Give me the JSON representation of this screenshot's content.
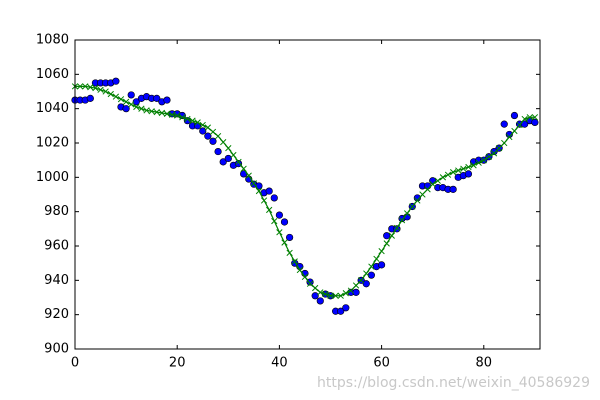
{
  "chart_data": {
    "type": "line",
    "x": [
      0,
      1,
      2,
      3,
      4,
      5,
      6,
      7,
      8,
      9,
      10,
      11,
      12,
      13,
      14,
      15,
      16,
      17,
      18,
      19,
      20,
      21,
      22,
      23,
      24,
      25,
      26,
      27,
      28,
      29,
      30,
      31,
      32,
      33,
      34,
      35,
      36,
      37,
      38,
      39,
      40,
      41,
      42,
      43,
      44,
      45,
      46,
      47,
      48,
      49,
      50,
      51,
      52,
      53,
      54,
      55,
      56,
      57,
      58,
      59,
      60,
      61,
      62,
      63,
      64,
      65,
      66,
      67,
      68,
      69,
      70,
      71,
      72,
      73,
      74,
      75,
      76,
      77,
      78,
      79,
      80,
      81,
      82,
      83,
      84,
      85,
      86,
      87,
      88,
      89,
      90
    ],
    "series": [
      {
        "color": "#0000ff",
        "mode": "markers",
        "marker": "circle",
        "values": [
          1045,
          1045,
          1045,
          1046,
          1055,
          1055,
          1055,
          1055,
          1056,
          1041,
          1040,
          1048,
          1044,
          1046,
          1047,
          1046,
          1046,
          1044,
          1045,
          1037,
          1037,
          1036,
          1033,
          1030,
          1030,
          1027,
          1024,
          1021,
          1015,
          1009,
          1011,
          1007,
          1008,
          1002,
          999,
          996,
          995,
          991,
          992,
          988,
          978,
          974,
          965,
          950,
          948,
          944,
          939,
          931,
          928,
          932,
          931,
          922,
          922,
          924,
          933,
          933,
          940,
          938,
          943,
          948,
          949,
          966,
          970,
          970,
          976,
          977,
          983,
          988,
          995,
          995,
          998,
          994,
          994,
          993,
          993,
          1000,
          1001,
          1002,
          1009,
          1010,
          1010,
          1012,
          1015,
          1017,
          1031,
          1025,
          1036,
          1031,
          1031,
          1033,
          1032
        ]
      },
      {
        "color": "#008000",
        "mode": "lines+markers",
        "marker": "x",
        "values": [
          1053,
          1053,
          1053,
          1052.5,
          1052,
          1051,
          1050,
          1048.5,
          1047,
          1045.5,
          1044,
          1042.5,
          1041,
          1040,
          1039,
          1038.5,
          1038,
          1037.5,
          1037,
          1036.5,
          1036,
          1035,
          1034,
          1033,
          1032,
          1030.5,
          1029,
          1026.5,
          1024,
          1020.5,
          1017,
          1013,
          1009,
          1005,
          1001,
          996.5,
          992,
          986.5,
          981,
          974.5,
          968,
          962,
          956,
          951,
          946,
          942,
          938,
          935.5,
          933,
          932,
          931,
          931,
          931,
          932.5,
          934,
          937,
          940,
          944,
          948,
          952.5,
          957,
          961.5,
          966,
          970.5,
          975,
          979,
          983,
          986.5,
          990,
          993,
          996,
          998,
          1000,
          1001.5,
          1003,
          1004,
          1005,
          1006,
          1007,
          1008.5,
          1010,
          1012,
          1014,
          1017,
          1020,
          1023.5,
          1027,
          1030.5,
          1034,
          1035,
          1035
        ]
      }
    ],
    "xlim": [
      0,
      91
    ],
    "xticks": [
      0,
      20,
      40,
      60,
      80
    ],
    "ylim": [
      900,
      1080
    ],
    "yticks": [
      900,
      920,
      940,
      960,
      980,
      1000,
      1020,
      1040,
      1060,
      1080
    ],
    "grid": false
  },
  "watermark": "https://blog.csdn.net/weixin_40586929"
}
